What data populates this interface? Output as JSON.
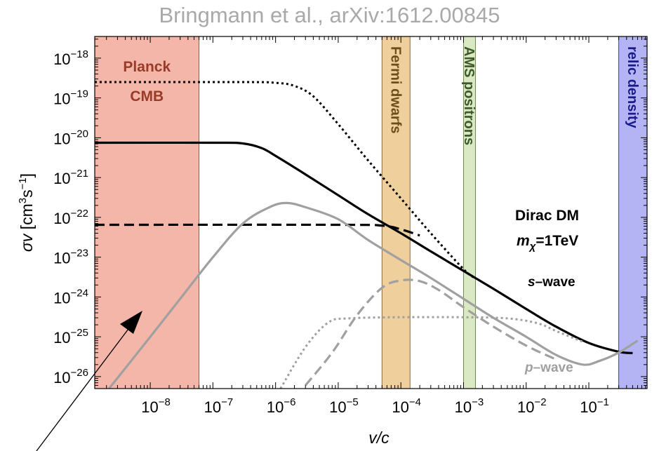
{
  "title": "Bringmann et al., arXiv:1612.00845",
  "chart_data": {
    "type": "line",
    "xscale": "log",
    "yscale": "log",
    "xlim": [
      1.3e-09,
      0.85
    ],
    "ylim": [
      5e-27,
      3.5e-18
    ],
    "xlabel": "v/c",
    "ylabel_main": "σv",
    "ylabel_units": "cm",
    "ylabel_units_sup": "3",
    "ylabel_units_s": "s",
    "ylabel_units_sup2": "−1",
    "grid": false,
    "xticks": [
      {
        "value": 1e-08,
        "base": "10",
        "exp": "−8"
      },
      {
        "value": 1e-07,
        "base": "10",
        "exp": "−7"
      },
      {
        "value": 1e-06,
        "base": "10",
        "exp": "−6"
      },
      {
        "value": 1e-05,
        "base": "10",
        "exp": "−5"
      },
      {
        "value": 0.0001,
        "base": "10",
        "exp": "−4"
      },
      {
        "value": 0.001,
        "base": "10",
        "exp": "−3"
      },
      {
        "value": 0.01,
        "base": "10",
        "exp": "−2"
      },
      {
        "value": 0.1,
        "base": "10",
        "exp": "−1"
      }
    ],
    "yticks": [
      {
        "value": 1e-18,
        "base": "10",
        "exp": "−18"
      },
      {
        "value": 1e-19,
        "base": "10",
        "exp": "−19"
      },
      {
        "value": 1e-20,
        "base": "10",
        "exp": "−20"
      },
      {
        "value": 1e-21,
        "base": "10",
        "exp": "−21"
      },
      {
        "value": 1e-22,
        "base": "10",
        "exp": "−22"
      },
      {
        "value": 1e-23,
        "base": "10",
        "exp": "−23"
      },
      {
        "value": 1e-24,
        "base": "10",
        "exp": "−24"
      },
      {
        "value": 1e-25,
        "base": "10",
        "exp": "−25"
      },
      {
        "value": 1e-26,
        "base": "10",
        "exp": "−26"
      }
    ],
    "bands": [
      {
        "label": "Planck CMB",
        "label_lines": [
          "Planck",
          "CMB"
        ],
        "x": [
          1.3e-09,
          6e-08
        ],
        "fill": "#f4b6a8",
        "stroke": "#a05040",
        "text_color": "#9a3a28",
        "orientation": "horizontal"
      },
      {
        "label": "Fermi dwarfs",
        "x": [
          5e-05,
          0.00014
        ],
        "fill": "#efcf9c",
        "stroke": "#8a6a40",
        "text_color": "#6b4e1a",
        "orientation": "vertical"
      },
      {
        "label": "AMS positrons",
        "x": [
          0.001,
          0.00155
        ],
        "fill": "#dbe8c4",
        "stroke": "#6a8a50",
        "text_color": "#3d5a2a",
        "orientation": "vertical"
      },
      {
        "label": "relic density",
        "x": [
          0.3,
          0.85
        ],
        "fill": "#b4b4f4",
        "stroke": "#4040a0",
        "text_color": "#1a1a8a",
        "orientation": "vertical"
      }
    ],
    "series": [
      {
        "style": "dotted",
        "color": "#000000",
        "points": [
          [
            1.3e-09,
            2.5e-19
          ],
          [
            3e-07,
            2.5e-19
          ],
          [
            1e-06,
            2.4e-19
          ],
          [
            2e-06,
            2e-19
          ],
          [
            4e-06,
            1.1e-19
          ],
          [
            1e-05,
            2.2e-20
          ],
          [
            3e-05,
            2.7e-21
          ],
          [
            0.0001,
            3e-22
          ],
          [
            0.0003,
            4e-23
          ],
          [
            0.001,
            5e-24
          ],
          [
            0.0015,
            3e-24
          ]
        ]
      },
      {
        "style": "solid",
        "color": "#000000",
        "points": [
          [
            1.3e-09,
            7.5e-21
          ],
          [
            1e-07,
            7.5e-21
          ],
          [
            3e-07,
            7.2e-21
          ],
          [
            6e-07,
            5.5e-21
          ],
          [
            1e-06,
            3.5e-21
          ],
          [
            3e-06,
            1.2e-21
          ],
          [
            1e-05,
            3.6e-22
          ],
          [
            3e-05,
            1.2e-22
          ],
          [
            0.0001,
            4e-23
          ],
          [
            0.0003,
            1.4e-23
          ],
          [
            0.001,
            4.5e-24
          ],
          [
            0.003,
            1.6e-24
          ],
          [
            0.01,
            5e-25
          ],
          [
            0.03,
            1.8e-25
          ],
          [
            0.1,
            7e-26
          ],
          [
            0.3,
            4.2e-26
          ],
          [
            0.5,
            3.9e-26
          ]
        ]
      },
      {
        "style": "dashed",
        "color": "#000000",
        "points": [
          [
            1.3e-09,
            6.5e-23
          ],
          [
            1e-05,
            6.5e-23
          ],
          [
            5e-05,
            6.2e-23
          ],
          [
            0.0001,
            5e-23
          ],
          [
            0.0002,
            3.5e-23
          ]
        ]
      },
      {
        "style": "solid",
        "color": "#a0a0a0",
        "points": [
          [
            2.2e-09,
            5e-27
          ],
          [
            1e-08,
            1e-25
          ],
          [
            3e-08,
            9e-25
          ],
          [
            1e-07,
            1e-23
          ],
          [
            3e-07,
            7e-23
          ],
          [
            8e-07,
            1.8e-22
          ],
          [
            1.5e-06,
            2.3e-22
          ],
          [
            3e-06,
            1.8e-22
          ],
          [
            1e-05,
            9e-23
          ],
          [
            3e-05,
            2.7e-23
          ],
          [
            0.0001,
            8.5e-24
          ],
          [
            0.0003,
            3e-24
          ],
          [
            0.001,
            9e-25
          ],
          [
            0.003,
            3e-25
          ],
          [
            0.01,
            1e-25
          ],
          [
            0.03,
            3.5e-26
          ],
          [
            0.08,
            2e-26
          ],
          [
            0.15,
            2.5e-26
          ],
          [
            0.3,
            4e-26
          ],
          [
            0.6,
            8e-26
          ]
        ]
      },
      {
        "style": "dashed",
        "color": "#a0a0a0",
        "points": [
          [
            3e-06,
            6e-27
          ],
          [
            8e-06,
            4e-26
          ],
          [
            2e-05,
            3.5e-25
          ],
          [
            5e-05,
            1.7e-24
          ],
          [
            0.0001,
            2.6e-24
          ],
          [
            0.0002,
            2.5e-24
          ],
          [
            0.0004,
            1.5e-24
          ],
          [
            0.001,
            5.5e-25
          ],
          [
            0.003,
            1.8e-25
          ],
          [
            0.01,
            6e-26
          ],
          [
            0.03,
            2.7e-26
          ]
        ]
      },
      {
        "style": "dotted",
        "color": "#a0a0a0",
        "points": [
          [
            1.2e-06,
            5e-27
          ],
          [
            3e-06,
            5.5e-26
          ],
          [
            7e-06,
            2.3e-25
          ],
          [
            1.5e-05,
            2.9e-25
          ],
          [
            0.0001,
            3.1e-25
          ],
          [
            0.001,
            3.1e-25
          ],
          [
            0.005,
            2.9e-25
          ],
          [
            0.015,
            2.2e-25
          ],
          [
            0.03,
            1.4e-25
          ],
          [
            0.08,
            7.5e-26
          ]
        ]
      }
    ],
    "annotations": {
      "dirac_line1": "Dirac DM",
      "dirac_m": "m",
      "dirac_chi": "χ",
      "dirac_eq": "=1TeV",
      "swave_letter": "s",
      "swave_rest": "–wave",
      "pwave_letter": "p",
      "pwave_rest": "–wave"
    }
  }
}
